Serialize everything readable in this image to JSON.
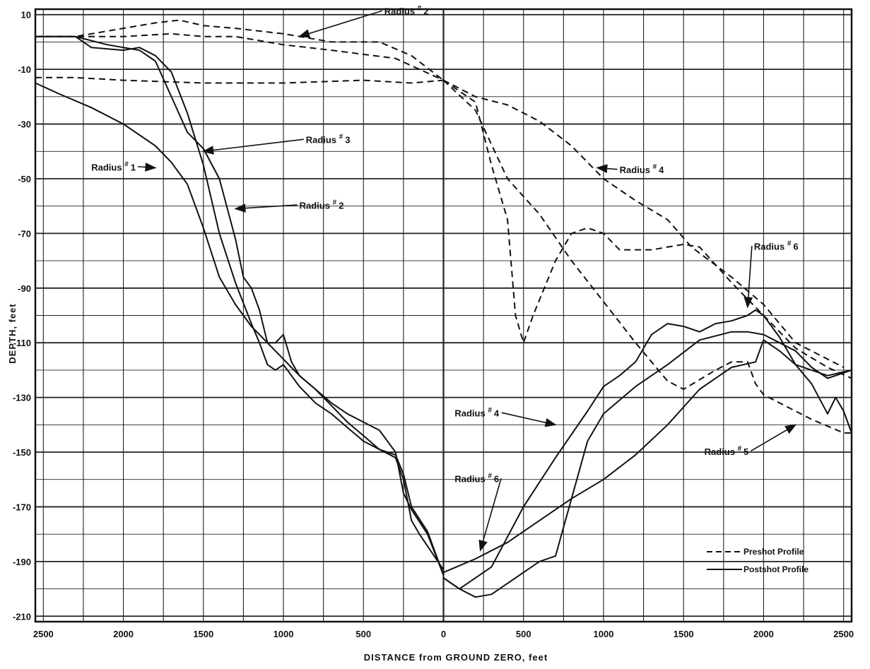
{
  "chart_data": {
    "type": "line",
    "xlabel": "DISTANCE  from  GROUND  ZERO,  feet",
    "ylabel": "DEPTH,  feet",
    "xlim": [
      -2550,
      2550
    ],
    "ylim": [
      -212,
      12
    ],
    "x_tick_values": [
      -2500,
      -2000,
      -1500,
      -1000,
      -500,
      0,
      500,
      1000,
      1500,
      2000,
      2500
    ],
    "x_tick_labels": [
      "2500",
      "2000",
      "1500",
      "1000",
      "500",
      "0",
      "500",
      "1000",
      "1500",
      "2000",
      "2500"
    ],
    "y_tick_values": [
      10,
      -10,
      -30,
      -50,
      -70,
      -90,
      -110,
      -130,
      -150,
      -170,
      -190,
      -210
    ],
    "y_tick_labels": [
      "10",
      "-10",
      "-30",
      "-50",
      "-70",
      "-90",
      "-110",
      "-130",
      "-150",
      "-170",
      "-190",
      "-210"
    ],
    "grid": true,
    "legend_position": "bottom-right",
    "legend": [
      {
        "label": "Preshot  Profile",
        "style": "dashed"
      },
      {
        "label": "Postshot  Profile",
        "style": "solid"
      }
    ],
    "series": [
      {
        "name": "Radius # 1",
        "style": "dashed",
        "x": [
          -2550,
          -2300,
          -2000,
          -1500,
          -1000,
          -500,
          -200,
          0
        ],
        "y": [
          -13,
          -13,
          -14,
          -15,
          -15,
          -14,
          -15,
          -14
        ]
      },
      {
        "name": "Radius # 2",
        "style": "dashed",
        "x": [
          -2550,
          -2300,
          -2000,
          -1800,
          -1650,
          -1500,
          -1300,
          -1000,
          -700,
          -400,
          -200,
          0
        ],
        "y": [
          2,
          2,
          5,
          7,
          8,
          6,
          5,
          3,
          0,
          0,
          -5,
          -14
        ]
      },
      {
        "name": "Radius # 3",
        "style": "dashed",
        "x": [
          -2550,
          -2300,
          -2000,
          -1700,
          -1500,
          -1300,
          -1000,
          -700,
          -300,
          0
        ],
        "y": [
          2,
          2,
          2,
          3,
          2,
          2,
          -1,
          -3,
          -6,
          -14
        ]
      },
      {
        "name": "Radius # 4",
        "style": "dashed",
        "x": [
          0,
          100,
          200,
          400,
          600,
          800,
          1000,
          1200,
          1400,
          1550,
          1800,
          2000,
          2200,
          2500
        ],
        "y": [
          -14,
          -17,
          -20,
          -23,
          -29,
          -38,
          -50,
          -58,
          -65,
          -75,
          -86,
          -96,
          -110,
          -119
        ]
      },
      {
        "name": "Radius # 6",
        "style": "dashed",
        "x": [
          0,
          200,
          300,
          400,
          450,
          500,
          560,
          700,
          800,
          900,
          1000,
          1100,
          1300,
          1500,
          1600,
          1800,
          2000,
          2200,
          2400,
          2550
        ],
        "y": [
          -14,
          -22,
          -45,
          -65,
          -100,
          -110,
          -100,
          -80,
          -70,
          -68,
          -70,
          -76,
          -76,
          -74,
          -75,
          -88,
          -100,
          -112,
          -119,
          -123
        ]
      },
      {
        "name": "Radius # 5",
        "style": "dashed",
        "x": [
          0,
          200,
          400,
          600,
          800,
          1000,
          1200,
          1400,
          1500,
          1700,
          1800,
          1900,
          1950,
          2000,
          2100,
          2300,
          2500,
          2550
        ],
        "y": [
          -14,
          -25,
          -50,
          -63,
          -80,
          -95,
          -110,
          -124,
          -127,
          -120,
          -117,
          -117,
          -125,
          -129,
          -132,
          -138,
          -143,
          -143
        ]
      },
      {
        "name": "Radius # 1",
        "style": "solid",
        "x": [
          -2550,
          -2400,
          -2200,
          -2000,
          -1800,
          -1700,
          -1600,
          -1500,
          -1400,
          -1300,
          -1200,
          -1100,
          -1000,
          -900,
          -800,
          -700,
          -600,
          -500,
          -400,
          -300,
          -250,
          -200,
          -100,
          0
        ],
        "y": [
          -15,
          -19,
          -24,
          -30,
          -38,
          -44,
          -52,
          -68,
          -86,
          -96,
          -104,
          -110,
          -116,
          -122,
          -127,
          -133,
          -139,
          -144,
          -149,
          -151,
          -158,
          -170,
          -179,
          -195
        ]
      },
      {
        "name": "Radius # 3",
        "style": "solid",
        "x": [
          -2550,
          -2300,
          -2200,
          -2000,
          -1900,
          -1800,
          -1700,
          -1600,
          -1500,
          -1400,
          -1300,
          -1200,
          -1150,
          -1100,
          -1050,
          -1000,
          -900,
          -800,
          -700,
          -600,
          -500,
          -400,
          -300,
          -250,
          -200,
          -150,
          0
        ],
        "y": [
          2,
          2,
          -2,
          -3,
          -2,
          -5,
          -11,
          -26,
          -45,
          -70,
          -88,
          -103,
          -110,
          -118,
          -120,
          -118,
          -126,
          -132,
          -136,
          -141,
          -146,
          -149,
          -152,
          -160,
          -175,
          -180,
          -193
        ]
      },
      {
        "name": "Radius # 2",
        "style": "solid",
        "x": [
          -2550,
          -2300,
          -2100,
          -1900,
          -1800,
          -1700,
          -1600,
          -1500,
          -1400,
          -1300,
          -1250,
          -1200,
          -1150,
          -1100,
          -1050,
          -1000,
          -950,
          -900,
          -800,
          -700,
          -600,
          -500,
          -400,
          -300,
          -250,
          -200,
          -100,
          0
        ],
        "y": [
          2,
          2,
          -1,
          -3,
          -7,
          -20,
          -33,
          -39,
          -50,
          -72,
          -86,
          -90,
          -98,
          -110,
          -110,
          -107,
          -117,
          -122,
          -127,
          -132,
          -136,
          -139,
          -142,
          -150,
          -165,
          -171,
          -180,
          -195
        ]
      },
      {
        "name": "Radius # 6",
        "style": "solid",
        "x": [
          0,
          200,
          400,
          600,
          800,
          1000,
          1200,
          1400,
          1600,
          1800,
          1950,
          2000,
          2100,
          2200,
          2400,
          2550
        ],
        "y": [
          -194,
          -189,
          -183,
          -175,
          -167,
          -160,
          -151,
          -140,
          -127,
          -119,
          -117,
          -109,
          -113,
          -118,
          -122,
          -120
        ]
      },
      {
        "name": "Radius # 4",
        "style": "solid",
        "x": [
          0,
          100,
          300,
          500,
          700,
          900,
          1000,
          1100,
          1200,
          1300,
          1400,
          1500,
          1600,
          1700,
          1800,
          1900,
          1950,
          2000,
          2100,
          2200,
          2300,
          2400,
          2450,
          2500,
          2550
        ],
        "y": [
          -196,
          -200,
          -192,
          -170,
          -152,
          -135,
          -126,
          -122,
          -117,
          -107,
          -103,
          -104,
          -106,
          -103,
          -102,
          -100,
          -98,
          -100,
          -108,
          -118,
          -125,
          -136,
          -130,
          -135,
          -143
        ]
      },
      {
        "name": "Radius # 5",
        "style": "solid",
        "x": [
          0,
          100,
          200,
          300,
          400,
          500,
          600,
          700,
          800,
          900,
          1000,
          1200,
          1400,
          1600,
          1800,
          1900,
          2000,
          2200,
          2300,
          2400,
          2550
        ],
        "y": [
          -196,
          -200,
          -203,
          -202,
          -198,
          -194,
          -190,
          -188,
          -167,
          -146,
          -136,
          -126,
          -118,
          -109,
          -106,
          -106,
          -107,
          -113,
          -119,
          -123,
          -120
        ]
      }
    ],
    "annotations": [
      {
        "text": "Radius",
        "mark": "#",
        "num": "2",
        "x": -370,
        "y": 10,
        "ax": -900,
        "ay": 2
      },
      {
        "text": "Radius",
        "mark": "#",
        "num": "3",
        "x": -860,
        "y": -37,
        "ax": -1500,
        "ay": -40
      },
      {
        "text": "Radius",
        "mark": "#",
        "num": "1",
        "x": -2200,
        "y": -47,
        "ax": -1800,
        "ay": -46
      },
      {
        "text": "Radius",
        "mark": "#",
        "num": "2",
        "x": -900,
        "y": -61,
        "ax": -1300,
        "ay": -61
      },
      {
        "text": "Radius",
        "mark": "#",
        "num": "4",
        "x": 1100,
        "y": -48,
        "ax": 960,
        "ay": -46
      },
      {
        "text": "Radius",
        "mark": "#",
        "num": "6",
        "x": 1940,
        "y": -76,
        "ax": 1900,
        "ay": -97
      },
      {
        "text": "Radius",
        "mark": "#",
        "num": "4",
        "x": 70,
        "y": -137,
        "ax": 700,
        "ay": -140
      },
      {
        "text": "Radius",
        "mark": "#",
        "num": "6",
        "x": 70,
        "y": -161,
        "ax": 230,
        "ay": -186
      },
      {
        "text": "Radius",
        "mark": "#",
        "num": "5",
        "x": 1630,
        "y": -151,
        "ax": 2200,
        "ay": -140
      }
    ]
  }
}
